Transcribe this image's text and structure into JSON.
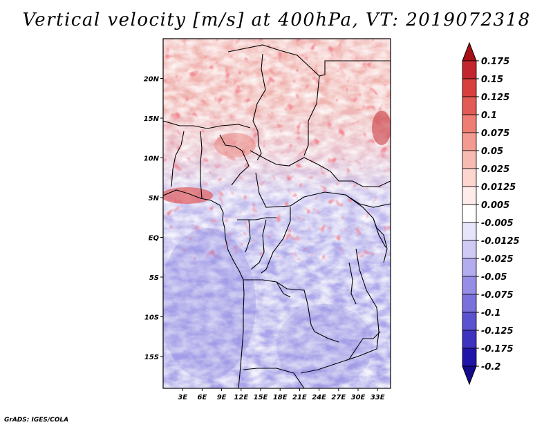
{
  "title": "Vertical velocity [m/s] at 400hPa, VT: 2019072318",
  "footer": "GrADS: IGES/COLA",
  "map": {
    "lon_range": [
      0,
      35
    ],
    "lat_range": [
      -19,
      25
    ],
    "lon_ticks": [
      "3E",
      "6E",
      "9E",
      "12E",
      "15E",
      "18E",
      "21E",
      "24E",
      "27E",
      "30E",
      "33E"
    ],
    "lat_ticks": [
      "20N",
      "15N",
      "10N",
      "5N",
      "EQ",
      "5S",
      "10S",
      "15S"
    ],
    "field": "vertical velocity at 400hPa (mottled red/blue, stronger ascent over Sahel and Gulf of Guinea, weaker/descent over southern Atlantic and southern Africa)"
  },
  "colorbar": {
    "levels": [
      "0.175",
      "0.15",
      "0.125",
      "0.1",
      "0.075",
      "0.05",
      "0.025",
      "0.0125",
      "0.005",
      "-0.005",
      "-0.0125",
      "-0.025",
      "-0.05",
      "-0.075",
      "-0.1",
      "-0.125",
      "-0.175",
      "-0.2"
    ],
    "colors": [
      "#a50f15",
      "#c1272d",
      "#d7403d",
      "#e35b55",
      "#ee7d74",
      "#f39b90",
      "#f8bbb1",
      "#fcd6cf",
      "#fdecea",
      "#ffffff",
      "#e7e5fa",
      "#cfcbf5",
      "#b3adef",
      "#958de6",
      "#7a71dc",
      "#5b52cf",
      "#3d33bf",
      "#2015a8",
      "#130a8c"
    ]
  }
}
